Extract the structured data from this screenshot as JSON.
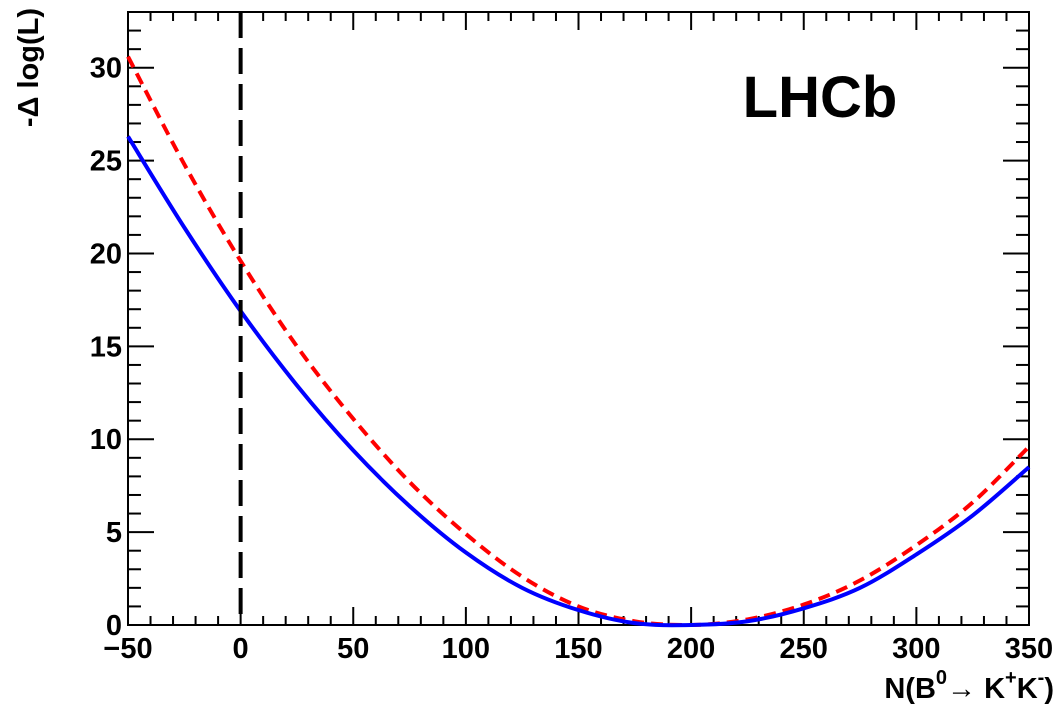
{
  "chart_data": {
    "type": "line",
    "title": "",
    "watermark": "LHCb",
    "xlabel": {
      "prefix": "N(B",
      "sup1": "0",
      "arrow": "→",
      "k1": " K",
      "sup2": "+",
      "k2": "K",
      "sup3": "-",
      "suffix": ")"
    },
    "ylabel": "-Δ log(L)",
    "xlim": [
      -50,
      350
    ],
    "ylim": [
      0,
      33
    ],
    "xticks": [
      -50,
      0,
      50,
      100,
      150,
      200,
      250,
      300,
      350
    ],
    "xtick_labels": [
      "−50",
      "0",
      "50",
      "100",
      "150",
      "200",
      "250",
      "300",
      "350"
    ],
    "yticks": [
      0,
      5,
      10,
      15,
      20,
      25,
      30
    ],
    "ytick_labels": [
      "0",
      "5",
      "10",
      "15",
      "20",
      "25",
      "30"
    ],
    "vertical_line": {
      "x": 0,
      "style": "dashed",
      "color": "#000000"
    },
    "series": [
      {
        "color": "#ff0000",
        "style": "dashed",
        "x": [
          -50,
          -25,
          0,
          25,
          50,
          75,
          100,
          125,
          150,
          175,
          200,
          225,
          250,
          275,
          300,
          325,
          350
        ],
        "y": [
          30.6,
          24.8,
          19.6,
          15.0,
          11.1,
          7.7,
          4.9,
          2.6,
          1.0,
          0.2,
          0.0,
          0.3,
          1.1,
          2.4,
          4.3,
          6.6,
          9.6
        ]
      },
      {
        "color": "#0000ff",
        "style": "solid",
        "x": [
          -50,
          -25,
          0,
          25,
          50,
          75,
          100,
          125,
          150,
          175,
          200,
          225,
          250,
          275,
          300,
          325,
          350
        ],
        "y": [
          26.3,
          21.4,
          16.9,
          12.9,
          9.4,
          6.4,
          3.9,
          2.0,
          0.8,
          0.1,
          0.0,
          0.2,
          0.9,
          2.0,
          3.8,
          5.9,
          8.5
        ]
      }
    ],
    "grid": false,
    "legend": "none"
  }
}
